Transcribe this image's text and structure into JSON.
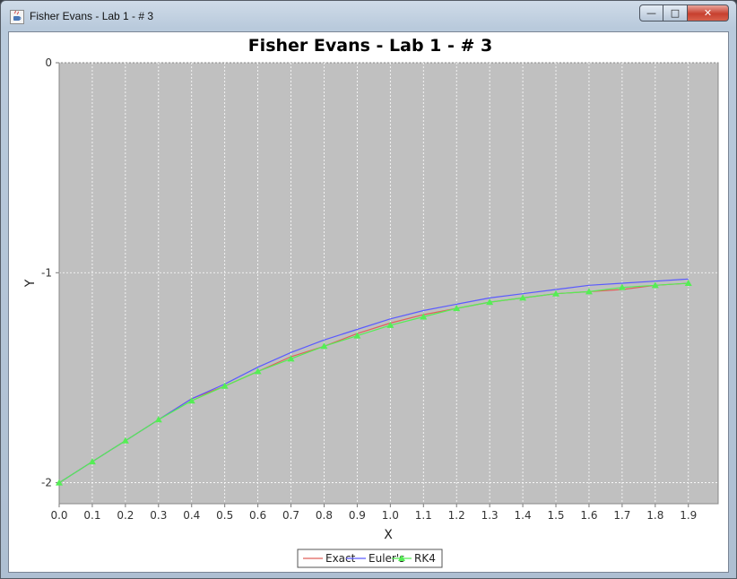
{
  "window": {
    "title": "Fisher Evans - Lab 1 - # 3",
    "controls": {
      "minimize": "—",
      "maximize": "□",
      "close": "✕"
    }
  },
  "chart_data": {
    "type": "line",
    "title": "Fisher Evans - Lab 1 - # 3",
    "xlabel": "X",
    "ylabel": "Y",
    "xlim": [
      0.0,
      1.99
    ],
    "ylim": [
      -2.1,
      0.0
    ],
    "xticks": [
      "0.0",
      "0.1",
      "0.2",
      "0.3",
      "0.4",
      "0.5",
      "0.6",
      "0.7",
      "0.8",
      "0.9",
      "1.0",
      "1.1",
      "1.2",
      "1.3",
      "1.4",
      "1.5",
      "1.6",
      "1.7",
      "1.8",
      "1.9"
    ],
    "yticks": [
      "0",
      "-1",
      "-2"
    ],
    "grid": true,
    "plot_background": "#c0c0c0",
    "legend_position": "bottom",
    "x": [
      0.0,
      0.1,
      0.2,
      0.3,
      0.4,
      0.5,
      0.6,
      0.7,
      0.8,
      0.9,
      1.0,
      1.1,
      1.2,
      1.3,
      1.4,
      1.5,
      1.6,
      1.7,
      1.8,
      1.9
    ],
    "series": [
      {
        "name": "Exact",
        "color": "#e0605a",
        "marker": "none",
        "values": [
          -2.0,
          -1.9,
          -1.8,
          -1.7,
          -1.6,
          -1.54,
          -1.47,
          -1.4,
          -1.35,
          -1.29,
          -1.24,
          -1.2,
          -1.17,
          -1.14,
          -1.12,
          -1.1,
          -1.09,
          -1.08,
          -1.06,
          -1.05
        ]
      },
      {
        "name": "Euler's",
        "color": "#5a5aff",
        "marker": "none",
        "values": [
          -2.0,
          -1.9,
          -1.8,
          -1.7,
          -1.6,
          -1.53,
          -1.45,
          -1.38,
          -1.32,
          -1.27,
          -1.22,
          -1.18,
          -1.15,
          -1.12,
          -1.1,
          -1.08,
          -1.06,
          -1.05,
          -1.04,
          -1.03
        ]
      },
      {
        "name": "RK4",
        "color": "#55ee55",
        "marker": "triangle",
        "values": [
          -2.0,
          -1.9,
          -1.8,
          -1.7,
          -1.61,
          -1.54,
          -1.47,
          -1.41,
          -1.35,
          -1.3,
          -1.25,
          -1.21,
          -1.17,
          -1.14,
          -1.12,
          -1.1,
          -1.09,
          -1.07,
          -1.06,
          -1.05
        ]
      }
    ]
  }
}
